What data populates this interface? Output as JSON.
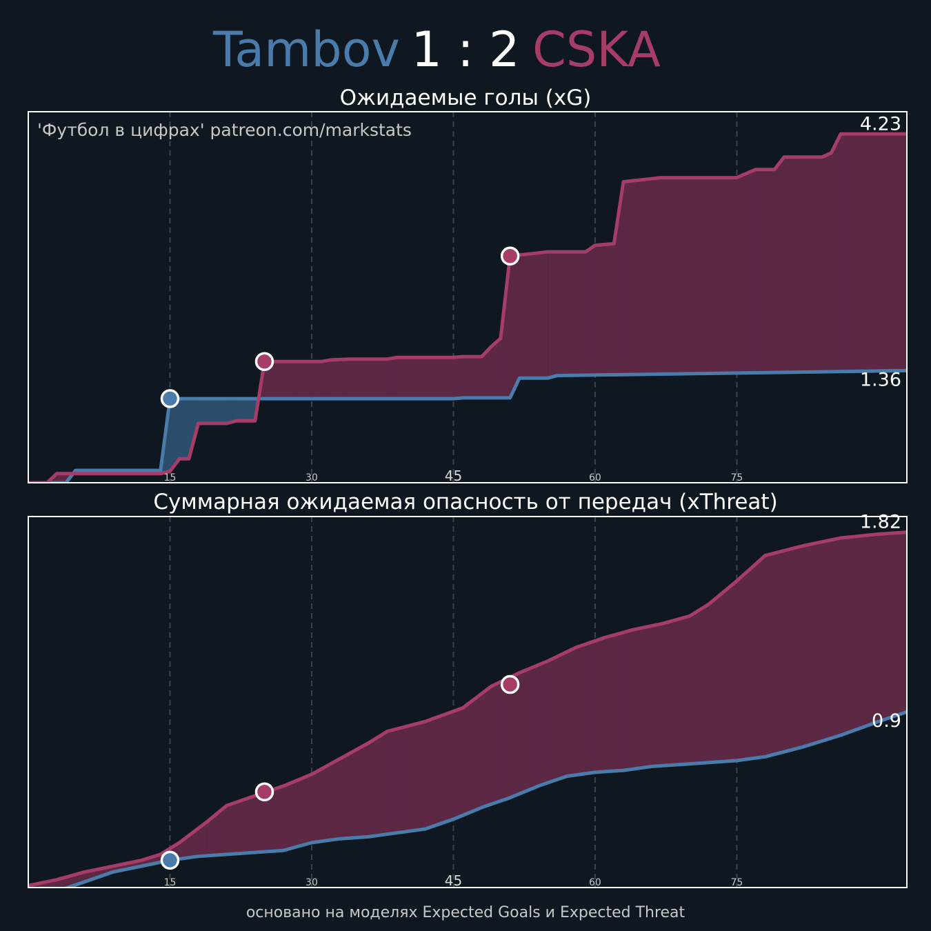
{
  "header": {
    "home_team": "Tambov",
    "score": "1 : 2",
    "away_team": "CSKA"
  },
  "colors": {
    "background": "#0f1820",
    "home": "#4a7cab",
    "away": "#a53d68",
    "home_fill": "#2c4d6c",
    "away_fill": "#5c2844"
  },
  "watermark": "'Футбол в цифрах' patreon.com/markstats",
  "footer": "основано на моделях Expected Goals и Expected Threat",
  "chart_data": [
    {
      "type": "area",
      "title": "Ожидаемые голы (xG)",
      "xlim": [
        0,
        93
      ],
      "ylim": [
        0,
        4.5
      ],
      "x_ticks": [
        15,
        30,
        45,
        60,
        75
      ],
      "x_tick_labels": [
        "15",
        "30",
        "45",
        "60",
        "75"
      ],
      "grid": "vertical-dashed",
      "end_labels": {
        "home": "1.36",
        "away": "4.23"
      },
      "series": [
        {
          "name": "Tambov",
          "points": [
            [
              0,
              0
            ],
            [
              4,
              0
            ],
            [
              5,
              0.15
            ],
            [
              14,
              0.15
            ],
            [
              15,
              1.02
            ],
            [
              28,
              1.02
            ],
            [
              45,
              1.02
            ],
            [
              46,
              1.03
            ],
            [
              51,
              1.03
            ],
            [
              52,
              1.27
            ],
            [
              55,
              1.27
            ],
            [
              56,
              1.3
            ],
            [
              93,
              1.36
            ]
          ]
        },
        {
          "name": "CSKA",
          "points": [
            [
              0,
              0
            ],
            [
              2,
              0
            ],
            [
              3,
              0.11
            ],
            [
              14,
              0.11
            ],
            [
              15,
              0.14
            ],
            [
              16,
              0.29
            ],
            [
              17,
              0.29
            ],
            [
              18,
              0.72
            ],
            [
              21,
              0.72
            ],
            [
              22,
              0.75
            ],
            [
              24,
              0.75
            ],
            [
              25,
              1.47
            ],
            [
              31,
              1.47
            ],
            [
              32,
              1.49
            ],
            [
              34,
              1.5
            ],
            [
              38,
              1.5
            ],
            [
              39,
              1.52
            ],
            [
              45,
              1.52
            ],
            [
              46,
              1.53
            ],
            [
              48,
              1.53
            ],
            [
              49,
              1.65
            ],
            [
              50,
              1.75
            ],
            [
              51,
              2.75
            ],
            [
              55,
              2.8
            ],
            [
              59,
              2.8
            ],
            [
              60,
              2.88
            ],
            [
              62,
              2.9
            ],
            [
              63,
              3.65
            ],
            [
              67,
              3.7
            ],
            [
              75,
              3.7
            ],
            [
              77,
              3.8
            ],
            [
              79,
              3.8
            ],
            [
              80,
              3.95
            ],
            [
              84,
              3.95
            ],
            [
              85,
              4.0
            ],
            [
              86,
              4.23
            ],
            [
              93,
              4.23
            ]
          ]
        }
      ],
      "goals": [
        {
          "team": "Tambov",
          "minute": 15,
          "value": 1.02
        },
        {
          "team": "CSKA",
          "minute": 25,
          "value": 1.47
        },
        {
          "team": "CSKA",
          "minute": 51,
          "value": 2.75
        }
      ]
    },
    {
      "type": "area",
      "title": "Суммарная ожидаемая опасность от передач (xThreat)",
      "xlim": [
        0,
        93
      ],
      "ylim": [
        0,
        1.9
      ],
      "x_ticks": [
        15,
        30,
        45,
        60,
        75
      ],
      "x_tick_labels": [
        "15",
        "30",
        "45",
        "60",
        "75"
      ],
      "grid": "vertical-dashed",
      "end_labels": {
        "home": "0.9",
        "away": "1.82"
      },
      "series": [
        {
          "name": "Tambov",
          "points": [
            [
              0,
              -0.05
            ],
            [
              3,
              -0.02
            ],
            [
              6,
              0.03
            ],
            [
              9,
              0.08
            ],
            [
              12,
              0.11
            ],
            [
              15,
              0.14
            ],
            [
              18,
              0.16
            ],
            [
              21,
              0.17
            ],
            [
              24,
              0.18
            ],
            [
              27,
              0.19
            ],
            [
              30,
              0.23
            ],
            [
              33,
              0.25
            ],
            [
              36,
              0.26
            ],
            [
              39,
              0.28
            ],
            [
              42,
              0.3
            ],
            [
              45,
              0.35
            ],
            [
              48,
              0.41
            ],
            [
              51,
              0.46
            ],
            [
              54,
              0.52
            ],
            [
              57,
              0.57
            ],
            [
              60,
              0.59
            ],
            [
              63,
              0.6
            ],
            [
              66,
              0.62
            ],
            [
              69,
              0.63
            ],
            [
              72,
              0.64
            ],
            [
              75,
              0.65
            ],
            [
              78,
              0.67
            ],
            [
              82,
              0.72
            ],
            [
              86,
              0.78
            ],
            [
              90,
              0.85
            ],
            [
              93,
              0.9
            ]
          ]
        },
        {
          "name": "CSKA",
          "points": [
            [
              0,
              0.01
            ],
            [
              3,
              0.04
            ],
            [
              6,
              0.08
            ],
            [
              9,
              0.11
            ],
            [
              12,
              0.14
            ],
            [
              14,
              0.17
            ],
            [
              16,
              0.23
            ],
            [
              19,
              0.34
            ],
            [
              21,
              0.42
            ],
            [
              24,
              0.47
            ],
            [
              27,
              0.52
            ],
            [
              30,
              0.58
            ],
            [
              33,
              0.66
            ],
            [
              36,
              0.74
            ],
            [
              38,
              0.8
            ],
            [
              42,
              0.85
            ],
            [
              46,
              0.92
            ],
            [
              49,
              1.03
            ],
            [
              52,
              1.1
            ],
            [
              55,
              1.16
            ],
            [
              58,
              1.23
            ],
            [
              61,
              1.28
            ],
            [
              64,
              1.32
            ],
            [
              67,
              1.35
            ],
            [
              70,
              1.39
            ],
            [
              72,
              1.45
            ],
            [
              75,
              1.57
            ],
            [
              78,
              1.7
            ],
            [
              82,
              1.75
            ],
            [
              86,
              1.79
            ],
            [
              90,
              1.81
            ],
            [
              93,
              1.82
            ]
          ]
        }
      ],
      "goals": [
        {
          "team": "Tambov",
          "minute": 15,
          "value": 0.14
        },
        {
          "team": "CSKA",
          "minute": 25,
          "value": 0.49
        },
        {
          "team": "CSKA",
          "minute": 51,
          "value": 1.04
        }
      ]
    }
  ]
}
